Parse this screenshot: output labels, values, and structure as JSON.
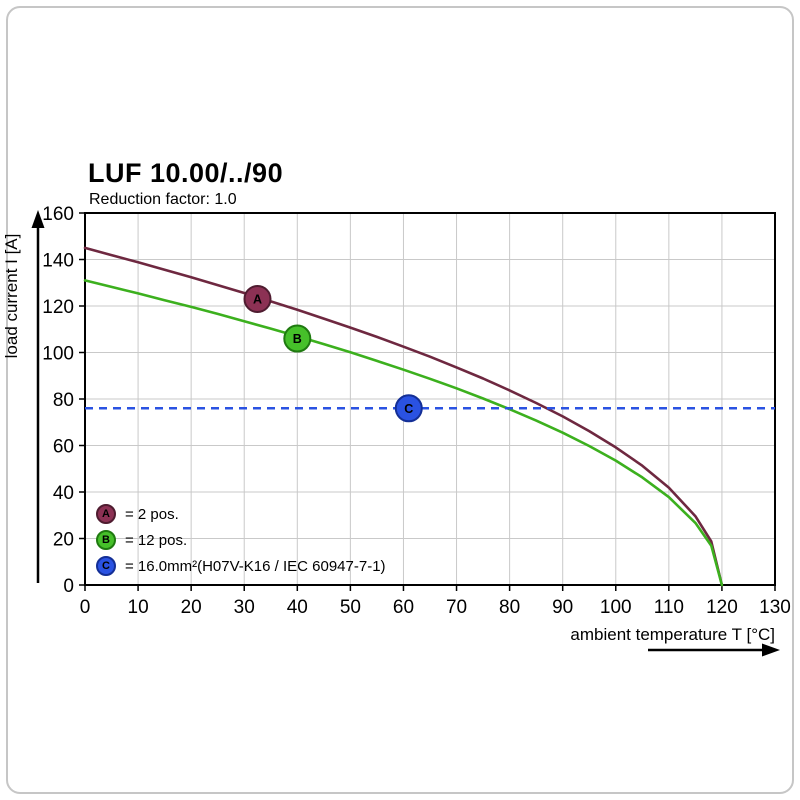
{
  "chart_data": {
    "type": "line",
    "title": "LUF 10.00/../90",
    "subtitle": "Reduction factor: 1.0",
    "xlabel": "ambient temperature T [°C]",
    "ylabel": "load current I [A]",
    "xlim": [
      0,
      130
    ],
    "ylim": [
      0,
      160
    ],
    "xticks": [
      0,
      10,
      20,
      30,
      40,
      50,
      60,
      70,
      80,
      90,
      100,
      110,
      120,
      130
    ],
    "yticks": [
      0,
      20,
      40,
      60,
      80,
      100,
      120,
      140,
      160
    ],
    "grid": true,
    "legend_position": "bottom-left-inside",
    "colors": {
      "grid": "#c9c9c9",
      "axis": "#000000",
      "background": "#ffffff"
    },
    "series": [
      {
        "name": "A",
        "legend_label": "= 2 pos.",
        "color": "#6e2840",
        "fill": "#8c3154",
        "stroke": "#4f1c30",
        "marker": {
          "x": 32.5,
          "y": 123
        },
        "points": [
          [
            0,
            145
          ],
          [
            5,
            141.9
          ],
          [
            10,
            138.8
          ],
          [
            15,
            135.6
          ],
          [
            20,
            132.4
          ],
          [
            25,
            129.0
          ],
          [
            30,
            125.6
          ],
          [
            35,
            122.0
          ],
          [
            40,
            118.4
          ],
          [
            45,
            114.6
          ],
          [
            50,
            110.7
          ],
          [
            55,
            106.7
          ],
          [
            60,
            102.5
          ],
          [
            65,
            98.2
          ],
          [
            70,
            93.6
          ],
          [
            75,
            88.8
          ],
          [
            80,
            83.7
          ],
          [
            85,
            78.3
          ],
          [
            90,
            72.5
          ],
          [
            95,
            66.2
          ],
          [
            100,
            59.2
          ],
          [
            105,
            51.3
          ],
          [
            110,
            41.9
          ],
          [
            115,
            29.6
          ],
          [
            118,
            18.7
          ],
          [
            120,
            0
          ]
        ]
      },
      {
        "name": "B",
        "legend_label": "= 12 pos.",
        "color": "#3cb01e",
        "fill": "#46c02a",
        "stroke": "#1f7a10",
        "marker": {
          "x": 40,
          "y": 106
        },
        "points": [
          [
            0,
            131
          ],
          [
            5,
            128.2
          ],
          [
            10,
            125.4
          ],
          [
            15,
            122.5
          ],
          [
            20,
            119.6
          ],
          [
            25,
            116.6
          ],
          [
            30,
            113.4
          ],
          [
            35,
            110.3
          ],
          [
            40,
            107.0
          ],
          [
            45,
            103.6
          ],
          [
            50,
            100.1
          ],
          [
            55,
            96.4
          ],
          [
            60,
            92.6
          ],
          [
            65,
            88.7
          ],
          [
            70,
            84.6
          ],
          [
            75,
            80.2
          ],
          [
            80,
            75.6
          ],
          [
            85,
            70.7
          ],
          [
            90,
            65.5
          ],
          [
            95,
            59.8
          ],
          [
            100,
            53.5
          ],
          [
            105,
            46.3
          ],
          [
            110,
            37.8
          ],
          [
            115,
            26.7
          ],
          [
            118,
            16.9
          ],
          [
            120,
            0
          ]
        ]
      },
      {
        "name": "C",
        "legend_label": "= 16.0mm²(H07V-K16 / IEC 60947-7-1)",
        "color": "#2a52e2",
        "fill": "#2a52e2",
        "stroke": "#142f96",
        "line_style": "dashed",
        "hline_y": 76,
        "marker": {
          "x": 61,
          "y": 76
        }
      }
    ]
  }
}
